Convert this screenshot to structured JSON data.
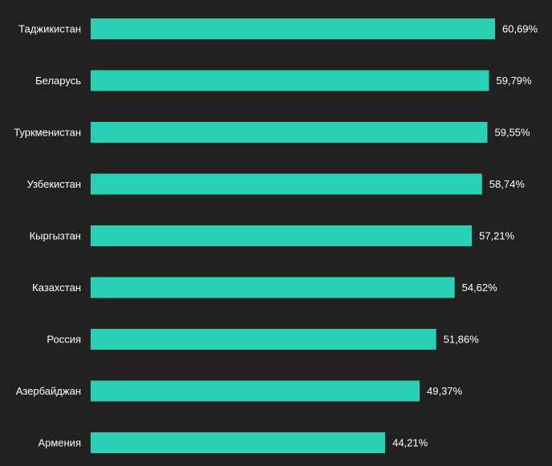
{
  "colors": {
    "background": "#222120",
    "bar": "#29d0b6",
    "text": "#ffffff"
  },
  "chart_data": {
    "type": "bar",
    "orientation": "horizontal",
    "title": "",
    "xlabel": "",
    "ylabel": "",
    "grid": false,
    "legend": "none",
    "xlim": [
      0,
      60.69
    ],
    "categories": [
      "Таджикистан",
      "Беларусь",
      "Туркменистан",
      "Узбекистан",
      "Кыргызтан",
      "Казахстан",
      "Россия",
      "Азербайджан",
      "Армения"
    ],
    "values": [
      60.69,
      59.79,
      59.55,
      58.74,
      57.21,
      54.62,
      51.86,
      49.37,
      44.21
    ],
    "value_labels": [
      "60,69%",
      "59,79%",
      "59,55%",
      "58,74%",
      "57,21%",
      "54,62%",
      "51,86%",
      "49,37%",
      "44,21%"
    ]
  }
}
